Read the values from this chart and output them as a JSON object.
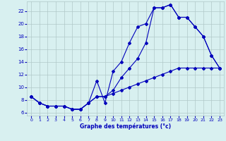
{
  "xlabel": "Graphe des températures (°c)",
  "background_color": "#d8f0f0",
  "grid_color": "#b0c8c8",
  "line_color": "#0000bb",
  "xlim": [
    -0.5,
    23.5
  ],
  "ylim": [
    5.5,
    23.5
  ],
  "xticks": [
    0,
    1,
    2,
    3,
    4,
    5,
    6,
    7,
    8,
    9,
    10,
    11,
    12,
    13,
    14,
    15,
    16,
    17,
    18,
    19,
    20,
    21,
    22,
    23
  ],
  "yticks": [
    6,
    8,
    10,
    12,
    14,
    16,
    18,
    20,
    22
  ],
  "line1_x": [
    0,
    1,
    2,
    3,
    4,
    5,
    6,
    7,
    8,
    9,
    10,
    11,
    12,
    13,
    14,
    15,
    16,
    17,
    18,
    19,
    20,
    21,
    22,
    23
  ],
  "line1_y": [
    8.5,
    7.5,
    7.0,
    7.0,
    7.0,
    6.5,
    6.5,
    7.5,
    8.5,
    8.5,
    9.0,
    9.5,
    10.0,
    10.5,
    11.0,
    11.5,
    12.0,
    12.5,
    13.0,
    13.0,
    13.0,
    13.0,
    13.0,
    13.0
  ],
  "line2_x": [
    0,
    1,
    2,
    3,
    4,
    5,
    6,
    7,
    8,
    9,
    10,
    11,
    12,
    13,
    14,
    15,
    16,
    17,
    18,
    19,
    20,
    21,
    22,
    23
  ],
  "line2_y": [
    8.5,
    7.5,
    7.0,
    7.0,
    7.0,
    6.5,
    6.5,
    7.5,
    11.0,
    7.5,
    12.5,
    14.0,
    17.0,
    19.5,
    20.0,
    22.5,
    22.5,
    23.0,
    21.0,
    21.0,
    19.5,
    18.0,
    15.0,
    13.0
  ],
  "line3_x": [
    0,
    1,
    2,
    3,
    4,
    5,
    6,
    7,
    8,
    9,
    10,
    11,
    12,
    13,
    14,
    15,
    16,
    17,
    18,
    19,
    20,
    21,
    22,
    23
  ],
  "line3_y": [
    8.5,
    7.5,
    7.0,
    7.0,
    7.0,
    6.5,
    6.5,
    7.5,
    8.5,
    8.5,
    9.5,
    11.5,
    13.0,
    14.5,
    17.0,
    22.5,
    22.5,
    23.0,
    21.0,
    21.0,
    19.5,
    18.0,
    15.0,
    13.0
  ]
}
